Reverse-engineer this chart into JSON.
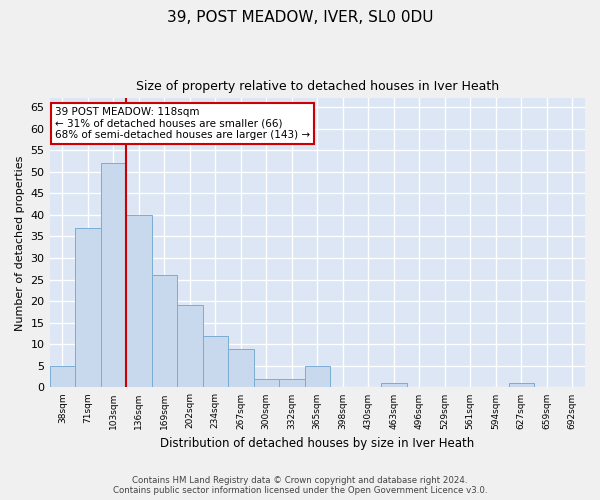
{
  "title1": "39, POST MEADOW, IVER, SL0 0DU",
  "title2": "Size of property relative to detached houses in Iver Heath",
  "xlabel": "Distribution of detached houses by size in Iver Heath",
  "ylabel": "Number of detached properties",
  "categories": [
    "38sqm",
    "71sqm",
    "103sqm",
    "136sqm",
    "169sqm",
    "202sqm",
    "234sqm",
    "267sqm",
    "300sqm",
    "332sqm",
    "365sqm",
    "398sqm",
    "430sqm",
    "463sqm",
    "496sqm",
    "529sqm",
    "561sqm",
    "594sqm",
    "627sqm",
    "659sqm",
    "692sqm"
  ],
  "values": [
    5,
    37,
    52,
    40,
    26,
    19,
    12,
    9,
    2,
    2,
    5,
    0,
    0,
    1,
    0,
    0,
    0,
    0,
    1,
    0,
    0
  ],
  "bar_color": "#c8d9ee",
  "bar_edge_color": "#7aadd4",
  "vline_x_index": 2.5,
  "vline_color": "#cc0000",
  "ylim": [
    0,
    67
  ],
  "yticks": [
    0,
    5,
    10,
    15,
    20,
    25,
    30,
    35,
    40,
    45,
    50,
    55,
    60,
    65
  ],
  "annotation_title": "39 POST MEADOW: 118sqm",
  "annotation_line1": "← 31% of detached houses are smaller (66)",
  "annotation_line2": "68% of semi-detached houses are larger (143) →",
  "annotation_box_color": "#ffffff",
  "annotation_box_edge": "#cc0000",
  "bg_color": "#dce6f5",
  "fig_bg_color": "#f0f0f0",
  "footer_line1": "Contains HM Land Registry data © Crown copyright and database right 2024.",
  "footer_line2": "Contains public sector information licensed under the Open Government Licence v3.0."
}
